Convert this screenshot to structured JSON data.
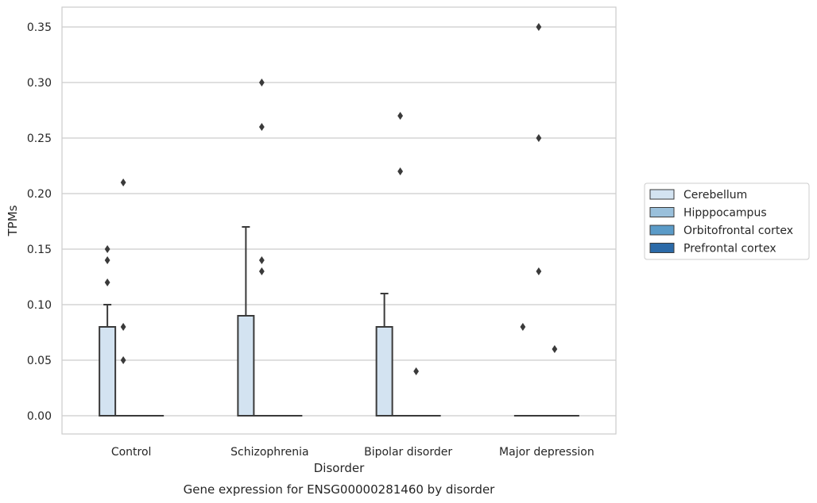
{
  "chart_data": {
    "type": "box",
    "caption": "Gene expression for ENSG00000281460 by disorder",
    "xlabel": "Disorder",
    "ylabel": "TPMs",
    "ylim": [
      -0.017,
      0.367
    ],
    "yticks": [
      "0.00",
      "0.05",
      "0.10",
      "0.15",
      "0.20",
      "0.25",
      "0.30",
      "0.35"
    ],
    "ytick_values": [
      0,
      0.05,
      0.1,
      0.15,
      0.2,
      0.25,
      0.3,
      0.35
    ],
    "grid": "horizontal",
    "legend_position": "right",
    "categories": [
      "Control",
      "Schizophrenia",
      "Bipolar disorder",
      "Major depression"
    ],
    "series": [
      {
        "name": "Cerebellum",
        "color": "#d3e3f1",
        "boxes": [
          {
            "q1": 0,
            "median": 0,
            "q3": 0.08,
            "whisker_low": 0,
            "whisker_high": 0.1,
            "outliers": [
              0.12,
              0.14,
              0.15
            ]
          },
          {
            "q1": 0,
            "median": 0,
            "q3": 0.09,
            "whisker_low": 0,
            "whisker_high": 0.17,
            "outliers": []
          },
          {
            "q1": 0,
            "median": 0,
            "q3": 0.08,
            "whisker_low": 0,
            "whisker_high": 0.11,
            "outliers": []
          },
          {
            "q1": 0,
            "median": 0,
            "q3": 0,
            "whisker_low": 0,
            "whisker_high": 0,
            "outliers": [
              0.08
            ]
          }
        ]
      },
      {
        "name": "Hipppocampus",
        "color": "#9ac0db",
        "boxes": [
          {
            "q1": 0,
            "median": 0,
            "q3": 0,
            "whisker_low": 0,
            "whisker_high": 0,
            "outliers": [
              0.05,
              0.08,
              0.21
            ]
          },
          {
            "q1": 0,
            "median": 0,
            "q3": 0,
            "whisker_low": 0,
            "whisker_high": 0,
            "outliers": [
              0.13,
              0.14,
              0.26,
              0.3
            ]
          },
          {
            "q1": 0,
            "median": 0,
            "q3": 0,
            "whisker_low": 0,
            "whisker_high": 0,
            "outliers": [
              0.22,
              0.27
            ]
          },
          {
            "q1": 0,
            "median": 0,
            "q3": 0,
            "whisker_low": 0,
            "whisker_high": 0,
            "outliers": [
              0.13,
              0.25,
              0.35
            ]
          }
        ]
      },
      {
        "name": "Orbitofrontal cortex",
        "color": "#5b9bc8",
        "boxes": [
          {
            "q1": 0,
            "median": 0,
            "q3": 0,
            "whisker_low": 0,
            "whisker_high": 0,
            "outliers": []
          },
          {
            "q1": 0,
            "median": 0,
            "q3": 0,
            "whisker_low": 0,
            "whisker_high": 0,
            "outliers": []
          },
          {
            "q1": 0,
            "median": 0,
            "q3": 0,
            "whisker_low": 0,
            "whisker_high": 0,
            "outliers": [
              0.04
            ]
          },
          {
            "q1": 0,
            "median": 0,
            "q3": 0,
            "whisker_low": 0,
            "whisker_high": 0,
            "outliers": [
              0.06
            ]
          }
        ]
      },
      {
        "name": "Prefrontal cortex",
        "color": "#2b6aa8",
        "boxes": [
          {
            "q1": 0,
            "median": 0,
            "q3": 0,
            "whisker_low": 0,
            "whisker_high": 0,
            "outliers": []
          },
          {
            "q1": 0,
            "median": 0,
            "q3": 0,
            "whisker_low": 0,
            "whisker_high": 0,
            "outliers": []
          },
          {
            "q1": 0,
            "median": 0,
            "q3": 0,
            "whisker_low": 0,
            "whisker_high": 0,
            "outliers": []
          },
          {
            "q1": 0,
            "median": 0,
            "q3": 0,
            "whisker_low": 0,
            "whisker_high": 0,
            "outliers": []
          }
        ]
      }
    ]
  }
}
